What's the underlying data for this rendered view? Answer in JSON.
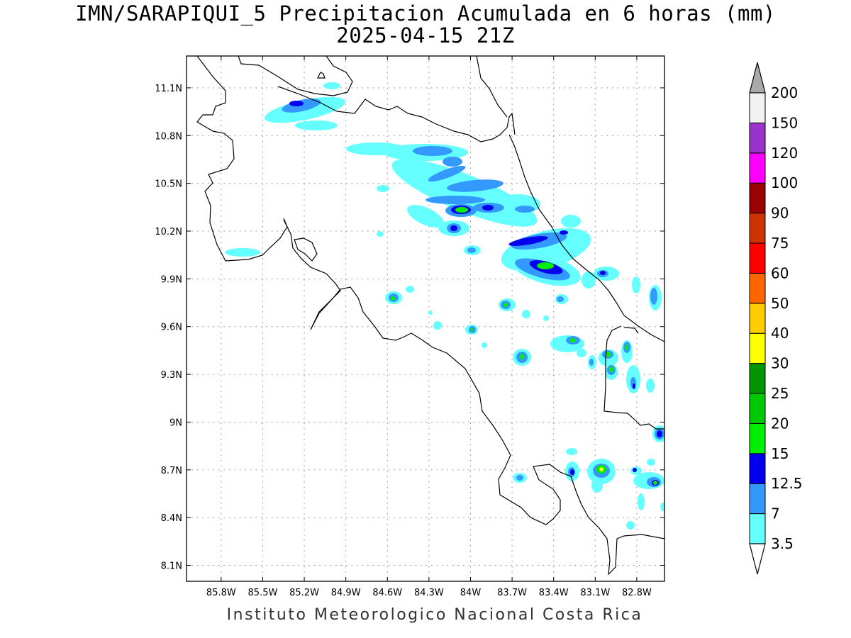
{
  "title": {
    "line1": "IMN/SARAPIQUI_5 Precipitacion Acumulada en 6 horas (mm)",
    "line2": "2025-04-15 21Z"
  },
  "credit": "Instituto Meteorologico Nacional Costa Rica",
  "map": {
    "lon_range": [
      -86.05,
      -82.6
    ],
    "lat_range": [
      8.0,
      11.3
    ],
    "x_ticks": [
      "85.8W",
      "85.5W",
      "85.2W",
      "84.9W",
      "84.6W",
      "84.3W",
      "84W",
      "83.7W",
      "83.4W",
      "83.1W",
      "82.8W"
    ],
    "y_ticks": [
      "11.1N",
      "10.8N",
      "10.5N",
      "10.2N",
      "9.9N",
      "9.6N",
      "9.3N",
      "9N",
      "8.7N",
      "8.4N",
      "8.1N"
    ],
    "grid": "dotted"
  },
  "colorbar": {
    "labels": [
      "3.5",
      "7",
      "12.5",
      "15",
      "20",
      "25",
      "30",
      "40",
      "50",
      "60",
      "75",
      "90",
      "100",
      "120",
      "150",
      "200"
    ],
    "colors": [
      "#66ffff",
      "#3399ff",
      "#0000ee",
      "#00ee00",
      "#00c800",
      "#009600",
      "#ffff00",
      "#ffcc00",
      "#ff6600",
      "#ff0000",
      "#cc3300",
      "#990000",
      "#ff00ff",
      "#9933cc",
      "#f2f2f2"
    ],
    "over_color": "#aaaaaa"
  }
}
